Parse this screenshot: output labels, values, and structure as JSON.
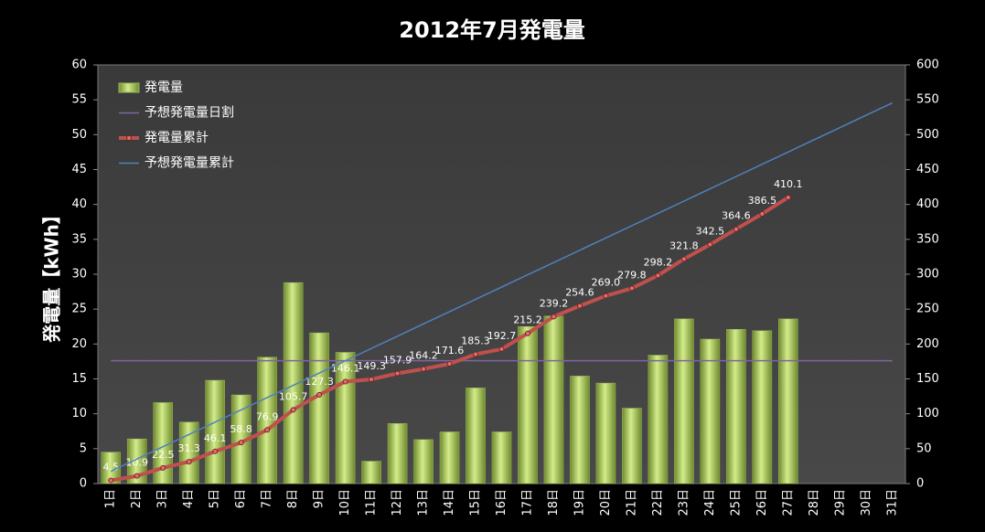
{
  "chart_data": {
    "type": "combo",
    "title": "2012年7月発電量",
    "ylabel": "発電量【kWh】",
    "categories": [
      "1日",
      "2日",
      "3日",
      "4日",
      "5日",
      "6日",
      "7日",
      "8日",
      "9日",
      "10日",
      "11日",
      "12日",
      "13日",
      "14日",
      "15日",
      "16日",
      "17日",
      "18日",
      "19日",
      "20日",
      "21日",
      "22日",
      "23日",
      "24日",
      "25日",
      "26日",
      "27日",
      "28日",
      "29日",
      "30日",
      "31日"
    ],
    "ylim": [
      0,
      60
    ],
    "yticks": [
      0,
      5,
      10,
      15,
      20,
      25,
      30,
      35,
      40,
      45,
      50,
      55,
      60
    ],
    "y2lim": [
      0,
      600
    ],
    "y2ticks": [
      0,
      50,
      100,
      150,
      200,
      250,
      300,
      350,
      400,
      450,
      500,
      550,
      600
    ],
    "legend": "upper left",
    "series": [
      {
        "name": "発電量",
        "type": "bar",
        "color": "#9bbb59",
        "values": [
          4.5,
          6.4,
          11.6,
          8.8,
          14.8,
          12.7,
          18.1,
          28.8,
          21.6,
          18.8,
          3.2,
          8.6,
          6.3,
          7.4,
          13.7,
          7.4,
          22.5,
          24.0,
          15.4,
          14.4,
          10.8,
          18.4,
          23.6,
          20.7,
          22.1,
          21.9,
          23.6,
          null,
          null,
          null,
          null
        ]
      },
      {
        "name": "予想発電量日割",
        "type": "line",
        "color": "#8064a2",
        "values": [
          17.6,
          17.6,
          17.6,
          17.6,
          17.6,
          17.6,
          17.6,
          17.6,
          17.6,
          17.6,
          17.6,
          17.6,
          17.6,
          17.6,
          17.6,
          17.6,
          17.6,
          17.6,
          17.6,
          17.6,
          17.6,
          17.6,
          17.6,
          17.6,
          17.6,
          17.6,
          17.6,
          17.6,
          17.6,
          17.6,
          17.6
        ]
      },
      {
        "name": "発電量累計",
        "type": "line",
        "axis": "y2",
        "color": "#c0504d",
        "markers": true,
        "values": [
          4.5,
          10.9,
          22.5,
          31.3,
          46.1,
          58.8,
          76.9,
          105.7,
          127.3,
          146.1,
          149.3,
          157.9,
          164.2,
          171.6,
          185.3,
          192.7,
          215.2,
          239.2,
          254.6,
          269.0,
          279.8,
          298.2,
          321.8,
          342.5,
          364.6,
          386.5,
          410.1,
          null,
          null,
          null,
          null
        ],
        "value_labels": [
          "4.5",
          "10.9",
          "22.5",
          "31.3",
          "46.1",
          "58.8",
          "76.9",
          "105.7",
          "127.3",
          "146.1",
          "149.3",
          "157.9",
          "164.2",
          "171.6",
          "185.3",
          "192.7",
          "215.2",
          "239.2",
          "254.6",
          "269.0",
          "279.8",
          "298.2",
          "321.8",
          "342.5",
          "364.6",
          "386.5",
          "410.1",
          null,
          null,
          null,
          null
        ]
      },
      {
        "name": "予想発電量累計",
        "type": "line",
        "axis": "y2",
        "color": "#4f81bd",
        "values": [
          17.6,
          35.2,
          52.8,
          70.4,
          88,
          105.6,
          123.2,
          140.8,
          158.4,
          176,
          193.6,
          211.2,
          228.8,
          246.4,
          264,
          281.6,
          299.2,
          316.8,
          334.4,
          352,
          369.6,
          387.2,
          404.8,
          422.4,
          440,
          457.6,
          475.2,
          492.8,
          510.4,
          528,
          545.6
        ]
      }
    ]
  }
}
